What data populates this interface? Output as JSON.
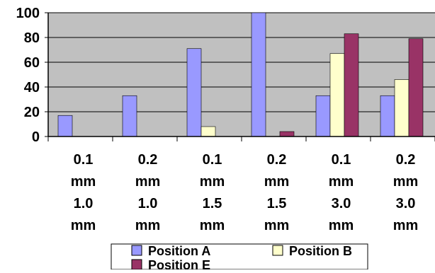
{
  "chart_data": {
    "type": "bar",
    "title": "",
    "xlabel": "",
    "ylabel": "",
    "ylim": [
      0,
      100
    ],
    "yticks": [
      0,
      20,
      40,
      60,
      80,
      100
    ],
    "grid": true,
    "legend_position": "bottom",
    "categories": [
      [
        "0.1",
        "mm",
        "1.0",
        "mm"
      ],
      [
        "0.2",
        "mm",
        "1.0",
        "mm"
      ],
      [
        "0.1",
        "mm",
        "1.5",
        "mm"
      ],
      [
        "0.2",
        "mm",
        "1.5",
        "mm"
      ],
      [
        "0.1",
        "mm",
        "3.0",
        "mm"
      ],
      [
        "0.2",
        "mm",
        "3.0",
        "mm"
      ]
    ],
    "series": [
      {
        "name": "Position A",
        "color": "#9999ff",
        "values": [
          17,
          33,
          71,
          100,
          33,
          33
        ]
      },
      {
        "name": "Position B",
        "color": "#ffffcc",
        "values": [
          0,
          0,
          8,
          0,
          67,
          46
        ]
      },
      {
        "name": "Position E",
        "color": "#993366",
        "values": [
          0,
          0,
          0,
          4,
          83,
          79
        ]
      }
    ],
    "colors": {
      "plot_background": "#c0c0c0",
      "gridline": "#000000",
      "bar_outline": "#000000"
    }
  }
}
